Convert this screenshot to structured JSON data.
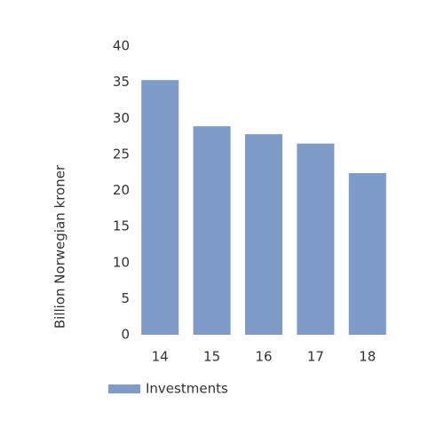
{
  "chart_data": {
    "type": "bar",
    "y_label": "Billion Norwegian kroner",
    "categories": [
      "14",
      "15",
      "16",
      "17",
      "18"
    ],
    "series": [
      {
        "name": "Investments",
        "color": "#7f9cc8",
        "values": [
          35.3,
          28.9,
          27.8,
          26.5,
          22.4
        ]
      }
    ],
    "ylim": [
      0,
      40
    ],
    "yticks": [
      0,
      5,
      10,
      15,
      20,
      25,
      30,
      35,
      40
    ],
    "grid": false
  }
}
